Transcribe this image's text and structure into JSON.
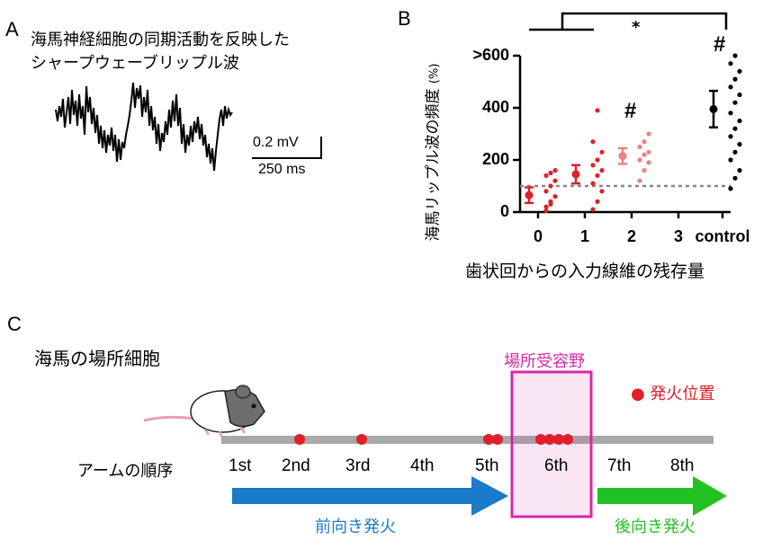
{
  "panel_a": {
    "label": "A",
    "title_line1": "海馬神経細胞の同期活動を反映した",
    "title_line2": "シャープウェーブリップル波",
    "scale_v": "0.2 mV",
    "scale_t": "250 ms"
  },
  "panel_b": {
    "label": "B",
    "significance": "*",
    "hash_marks": [
      "#",
      "#"
    ],
    "ylabel": "海馬リップル波の頻度",
    "ylabel_unit": "(%)",
    "xlabel": "歯状回からの入力線維の残存量",
    "y_tick_labels": [
      "0",
      "200",
      "400",
      ">600"
    ],
    "x_tick_labels": [
      "0",
      "1",
      "2",
      "3",
      "control"
    ]
  },
  "chart_data": {
    "type": "scatter",
    "xlabel": "歯状回からの入力線維の残存量",
    "ylabel": "海馬リップル波の頻度 (%)",
    "categories": [
      "0",
      "1",
      "2",
      "3",
      "control"
    ],
    "ylim": [
      0,
      600
    ],
    "reference_line": 100,
    "series": [
      {
        "category": "0",
        "color": "#e0202a",
        "mean": 65,
        "err": 30,
        "points": [
          20,
          40,
          60,
          80,
          100,
          120,
          140,
          150,
          160,
          5,
          30
        ]
      },
      {
        "category": "1",
        "color": "#e0202a",
        "mean": 145,
        "err": 35,
        "points": [
          10,
          40,
          80,
          110,
          140,
          160,
          180,
          200,
          230,
          270,
          390
        ]
      },
      {
        "category": "2",
        "color": "#f08080",
        "mean": 215,
        "err": 30,
        "points": [
          120,
          160,
          190,
          200,
          220,
          230,
          250,
          270,
          300
        ]
      },
      {
        "category": "control",
        "color": "#000000",
        "mean": 395,
        "err": 70,
        "points": [
          90,
          130,
          160,
          200,
          230,
          260,
          290,
          320,
          350,
          380,
          420,
          450,
          480,
          510,
          540,
          570,
          600
        ]
      }
    ]
  },
  "panel_c": {
    "label": "C",
    "title": "海馬の場所細胞",
    "field_label": "場所受容野",
    "legend": "● 発火位置",
    "order_label": "アームの順序",
    "arms": [
      "1st",
      "2nd",
      "3rd",
      "4th",
      "5th",
      "6th",
      "7th",
      "8th"
    ],
    "forward": "前向き発火",
    "backward": "後向き発火"
  },
  "colors": {
    "red": "#e0202a",
    "pink": "#f08080",
    "magenta": "#d42aa8",
    "blue": "#1a7bc9",
    "green": "#22c222",
    "track": "#a9a9a9"
  }
}
